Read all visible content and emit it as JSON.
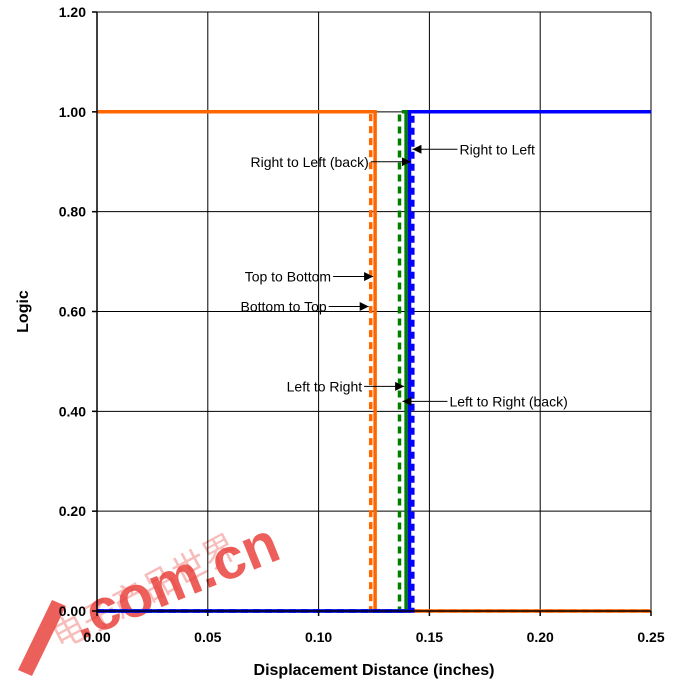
{
  "chart_data": {
    "type": "line",
    "xlabel": "Displacement Distance (inches)",
    "ylabel": "Logic",
    "xlim": [
      0,
      0.25
    ],
    "ylim": [
      0,
      1.2
    ],
    "x_ticks": [
      "0.00",
      "0.05",
      "0.10",
      "0.15",
      "0.20",
      "0.25"
    ],
    "y_ticks": [
      "0.00",
      "0.20",
      "0.40",
      "0.60",
      "0.80",
      "1.00",
      "1.20"
    ],
    "grid": true,
    "series": [
      {
        "color": "#0000ff",
        "dash": "solid",
        "points": [
          [
            0,
            0
          ],
          [
            0.141,
            0
          ],
          [
            0.141,
            1.0
          ],
          [
            0.25,
            1.0
          ]
        ]
      },
      {
        "color": "#0000ff",
        "dash": "dashed",
        "points": [
          [
            0,
            0
          ],
          [
            0.1425,
            0
          ],
          [
            0.1425,
            1.0
          ],
          [
            0.25,
            1.0
          ]
        ]
      },
      {
        "color": "#008000",
        "dash": "solid",
        "points": [
          [
            0,
            0
          ],
          [
            0.1395,
            0
          ],
          [
            0.1395,
            1.0
          ],
          [
            0.25,
            1.0
          ]
        ]
      },
      {
        "color": "#008000",
        "dash": "dashed",
        "points": [
          [
            0,
            0
          ],
          [
            0.1365,
            0
          ],
          [
            0.1365,
            1.0
          ],
          [
            0.25,
            1.0
          ]
        ]
      },
      {
        "color": "#ff6600",
        "dash": "solid",
        "points": [
          [
            0,
            1.0
          ],
          [
            0.1255,
            1.0
          ],
          [
            0.1255,
            0
          ],
          [
            0.25,
            0
          ]
        ]
      },
      {
        "color": "#ff6600",
        "dash": "dashed",
        "points": [
          [
            0,
            1.0
          ],
          [
            0.1235,
            1.0
          ],
          [
            0.1235,
            0
          ],
          [
            0.25,
            0
          ]
        ]
      }
    ],
    "annotations": [
      {
        "text": "Right to Left (back)",
        "arrow_to": [
          0.1425,
          0.9
        ],
        "direction": "right"
      },
      {
        "text": "Right to Left",
        "arrow_to": [
          0.141,
          0.925
        ],
        "direction": "left"
      },
      {
        "text": "Top to Bottom",
        "arrow_to": [
          0.1255,
          0.67
        ],
        "direction": "right"
      },
      {
        "text": "Bottom to Top",
        "arrow_to": [
          0.1235,
          0.61
        ],
        "direction": "right"
      },
      {
        "text": "Left to Right",
        "arrow_to": [
          0.1395,
          0.45
        ],
        "direction": "right"
      },
      {
        "text": "Left to Right (back)",
        "arrow_to": [
          0.1365,
          0.42
        ],
        "direction": "left"
      }
    ]
  },
  "watermark": {
    "text": ".com.cn",
    "cn_text": "电子产品世界"
  }
}
